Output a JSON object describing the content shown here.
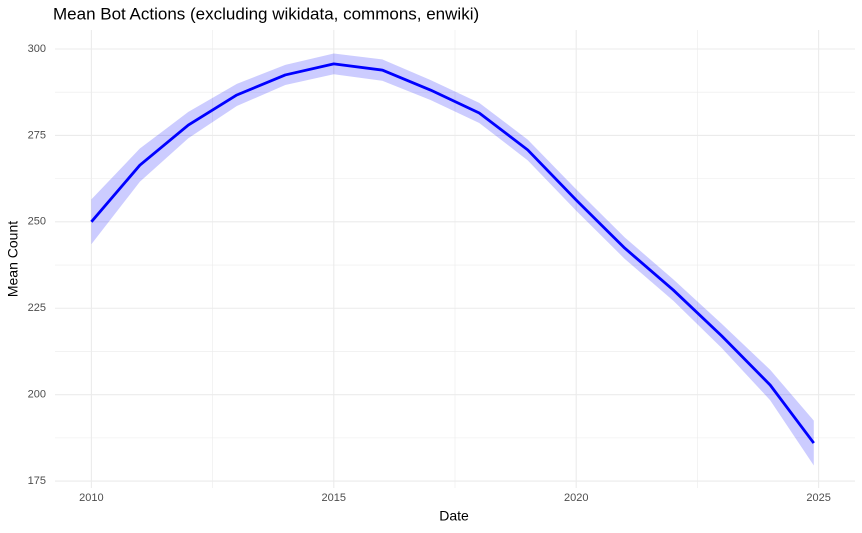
{
  "chart_data": {
    "type": "smooth",
    "title": "Mean Bot Actions (excluding wikidata, commons, enwiki)",
    "x_label": "Date",
    "y_label": "Mean Count",
    "x": [
      2010,
      2011,
      2012,
      2013,
      2014,
      2015,
      2016,
      2017,
      2018,
      2019,
      2020,
      2021,
      2022,
      2023,
      2024,
      2024.9
    ],
    "values": [
      250,
      266.4,
      278,
      286.7,
      292.5,
      295.7,
      293.9,
      288.1,
      281.5,
      270.8,
      256.3,
      242.4,
      230.3,
      217,
      202.8,
      186
    ],
    "lower": [
      243.5,
      261.6,
      274.2,
      283.5,
      289.6,
      292.7,
      290.8,
      285.2,
      278.6,
      267.8,
      253.2,
      239.3,
      227.2,
      213.5,
      198.4,
      179.5
    ],
    "upper": [
      256.5,
      271.2,
      281.8,
      289.9,
      295.4,
      298.7,
      297,
      291,
      284.4,
      273.8,
      259.4,
      245.5,
      233.4,
      220.5,
      207.2,
      192.5
    ],
    "color": "#0000ff",
    "band_color": "#0000ff",
    "xlim": [
      2009.25,
      2025.75
    ],
    "xticks": [
      2010,
      2015,
      2020,
      2025
    ],
    "xminorticks": [
      2012.5,
      2017.5,
      2022.5
    ],
    "ylim": [
      173,
      305.5
    ],
    "yticks": [
      175,
      200,
      225,
      250,
      275,
      300
    ],
    "yminorticks": [
      187.5,
      212.5,
      237.5,
      262.5,
      287.5
    ],
    "grid": true
  }
}
